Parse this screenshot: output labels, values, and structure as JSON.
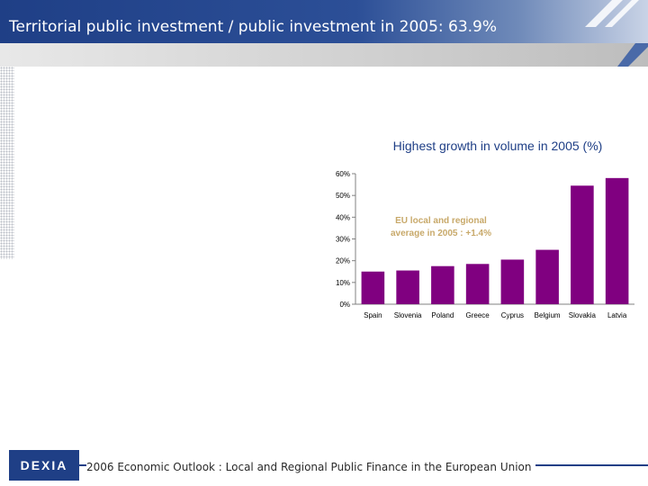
{
  "header": {
    "title": "Territorial public investment / public investment in 2005: 63.9%"
  },
  "colors": {
    "brand": "#1f3f86",
    "bar": "#800080",
    "callout_text": "#c8a96a"
  },
  "chart_data": {
    "type": "bar",
    "title": "Highest growth in volume in 2005 (%)",
    "categories": [
      "Spain",
      "Slovenia",
      "Poland",
      "Greece",
      "Cyprus",
      "Belgium",
      "Slovakia",
      "Latvia"
    ],
    "values": [
      15,
      15.5,
      17.5,
      18.5,
      20.5,
      25,
      54.5,
      58
    ],
    "ylim": [
      0,
      60
    ],
    "yticks": [
      0,
      10,
      20,
      30,
      40,
      50,
      60
    ],
    "ytick_labels": [
      "0%",
      "10%",
      "20%",
      "30%",
      "40%",
      "50%",
      "60%"
    ],
    "xlabel": "",
    "ylabel": "",
    "annotation": {
      "line1": "EU local and regional",
      "line2": "average in 2005 : +1.4%"
    }
  },
  "footer": {
    "logo_text": "DEXIA",
    "text": "2006 Economic Outlook : Local and Regional Public Finance in the European Union"
  }
}
